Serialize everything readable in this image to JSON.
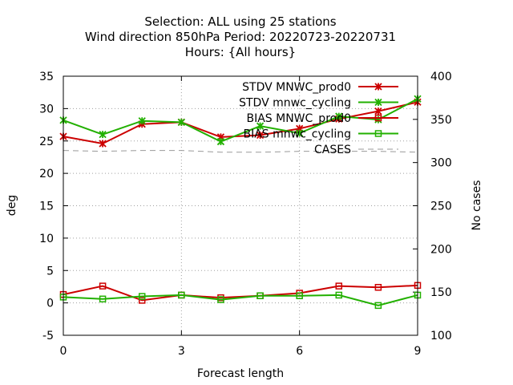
{
  "chart_data": {
    "type": "line",
    "title": [
      "Selection: ALL using    25 stations",
      "Wind direction 850hPa   Period: 20220723-20220731",
      "Hours: {All hours}"
    ],
    "xlabel": "Forecast length",
    "ylabel": "deg",
    "y2label": "No cases",
    "xlim": [
      0,
      9
    ],
    "ylim": [
      -5,
      35
    ],
    "y2lim": [
      100,
      400
    ],
    "xticks": [
      "0",
      "3",
      "6",
      "9"
    ],
    "yticks": [
      "-5",
      "0",
      "5",
      "10",
      "15",
      "20",
      "25",
      "30",
      "35"
    ],
    "y2ticks": [
      "100",
      "150",
      "200",
      "250",
      "300",
      "350",
      "400"
    ],
    "grid": true,
    "legend_position": "top-right",
    "x": [
      0,
      1,
      2,
      3,
      4,
      5,
      6,
      7,
      8,
      9
    ],
    "series": [
      {
        "name": "STDV MNWC_prod0",
        "color": "#cc0000",
        "marker": "x-star",
        "axis": "y",
        "values": [
          25.7,
          24.6,
          27.6,
          27.9,
          25.6,
          25.9,
          26.9,
          28.4,
          29.6,
          31.0
        ]
      },
      {
        "name": "STDV mnwc_cycling",
        "color": "#22b000",
        "marker": "x-star",
        "axis": "y",
        "values": [
          28.2,
          26.0,
          28.1,
          27.9,
          24.9,
          27.3,
          26.2,
          28.8,
          28.3,
          31.5
        ]
      },
      {
        "name": "BIAS MNWC_prod0",
        "color": "#cc0000",
        "marker": "square",
        "axis": "y",
        "values": [
          1.3,
          2.6,
          0.4,
          1.2,
          0.8,
          1.1,
          1.5,
          2.6,
          2.4,
          2.7
        ]
      },
      {
        "name": "BIAS mnwc_cycling",
        "color": "#22b000",
        "marker": "square",
        "axis": "y",
        "values": [
          0.9,
          0.6,
          1.0,
          1.2,
          0.5,
          1.1,
          1.1,
          1.2,
          -0.4,
          1.2
        ]
      },
      {
        "name": "CASES",
        "color": "#999999",
        "marker": "none",
        "dash": true,
        "axis": "y2",
        "values": [
          314,
          313,
          314,
          314,
          312,
          312,
          313,
          313,
          313,
          312
        ]
      }
    ]
  }
}
